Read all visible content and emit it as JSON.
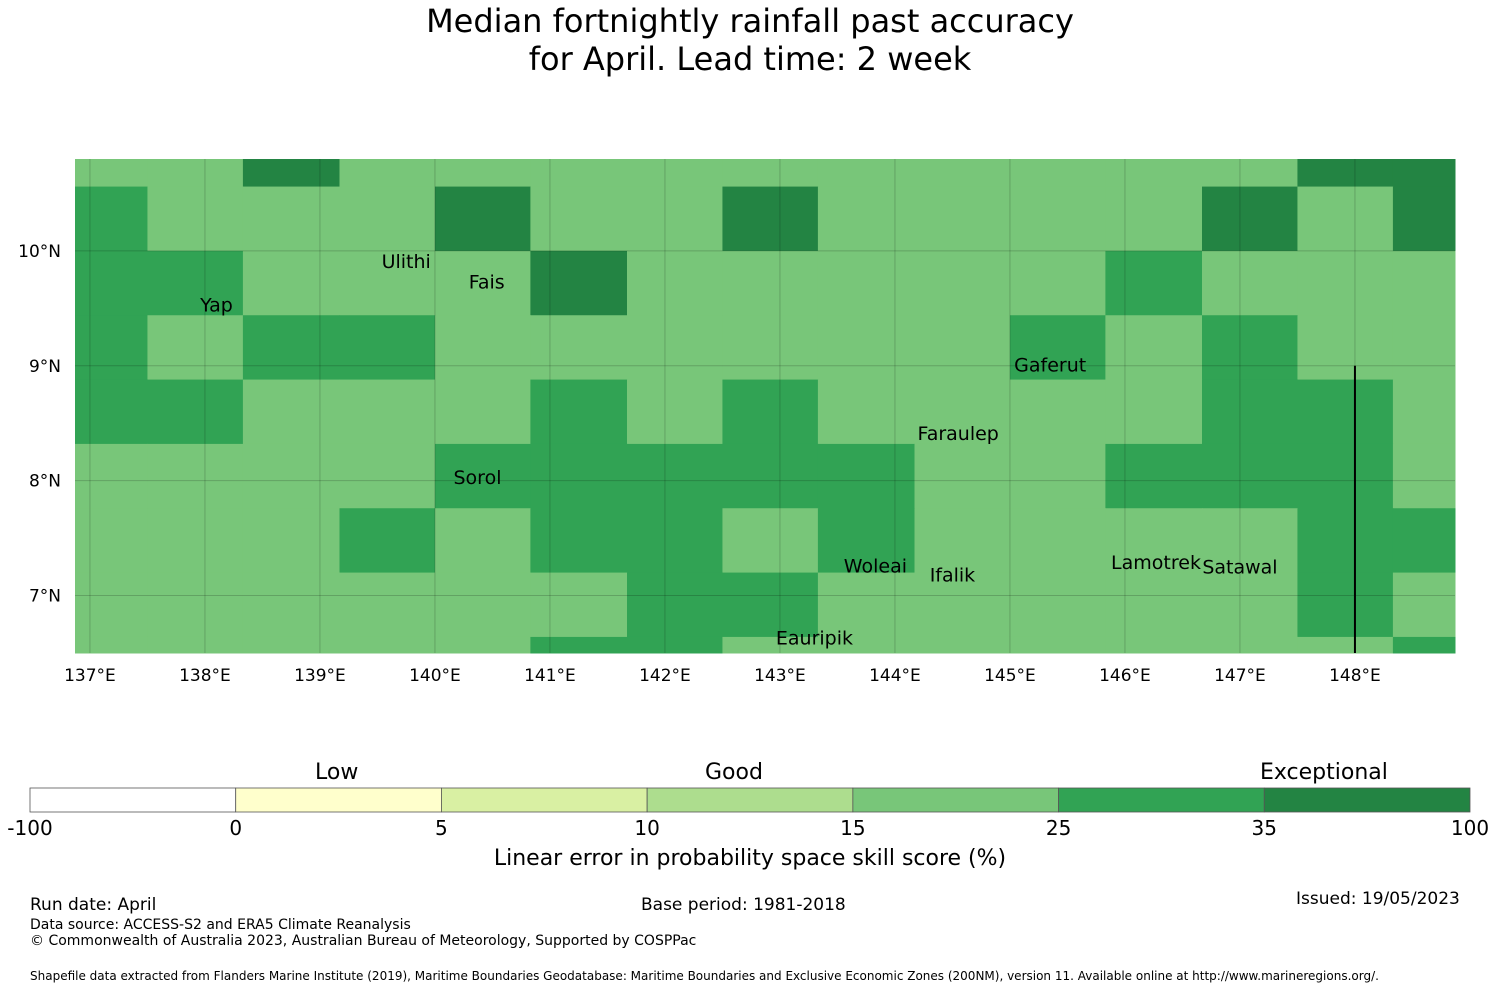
{
  "title": {
    "line1": "Median fortnightly rainfall past accuracy",
    "line2": "for April. Lead time: 2 week"
  },
  "map": {
    "lon_range": [
      136.87,
      148.87
    ],
    "lat_range": [
      6.5,
      10.8
    ],
    "x_ticks": [
      {
        "value": 137,
        "label": "137°E"
      },
      {
        "value": 138,
        "label": "138°E"
      },
      {
        "value": 139,
        "label": "139°E"
      },
      {
        "value": 140,
        "label": "140°E"
      },
      {
        "value": 141,
        "label": "141°E"
      },
      {
        "value": 142,
        "label": "142°E"
      },
      {
        "value": 143,
        "label": "143°E"
      },
      {
        "value": 144,
        "label": "144°E"
      },
      {
        "value": 145,
        "label": "145°E"
      },
      {
        "value": 146,
        "label": "146°E"
      },
      {
        "value": 147,
        "label": "147°E"
      },
      {
        "value": 148,
        "label": "148°E"
      }
    ],
    "y_ticks": [
      {
        "value": 10,
        "label": "10°N"
      },
      {
        "value": 9,
        "label": "9°N"
      },
      {
        "value": 8,
        "label": "8°N"
      },
      {
        "value": 7,
        "label": "7°N"
      }
    ],
    "grid": {
      "lon_edges": [
        136.87,
        137.5,
        138.33,
        139.17,
        140.0,
        140.83,
        141.67,
        142.5,
        143.33,
        144.17,
        145.0,
        145.83,
        146.67,
        147.5,
        148.33,
        148.87
      ],
      "lat_edges": [
        10.8,
        10.56,
        10.0,
        9.44,
        8.88,
        8.32,
        7.76,
        7.2,
        6.64,
        6.5
      ],
      "colors": [
        "#31a354",
        "#78c679",
        "#238443"
      ],
      "rows": [
        [
          1,
          1,
          2,
          1,
          1,
          1,
          1,
          1,
          1,
          1,
          1,
          1,
          1,
          2,
          2
        ],
        [
          0,
          1,
          1,
          1,
          2,
          1,
          1,
          2,
          1,
          1,
          1,
          1,
          2,
          1,
          2
        ],
        [
          0,
          0,
          1,
          1,
          1,
          2,
          1,
          1,
          1,
          1,
          1,
          0,
          1,
          1,
          1
        ],
        [
          0,
          1,
          0,
          0,
          1,
          1,
          1,
          1,
          1,
          1,
          0,
          1,
          0,
          1,
          1
        ],
        [
          0,
          0,
          1,
          1,
          1,
          0,
          1,
          0,
          1,
          1,
          1,
          1,
          0,
          0,
          1
        ],
        [
          1,
          1,
          1,
          1,
          0,
          0,
          0,
          0,
          0,
          1,
          1,
          0,
          0,
          0,
          1
        ],
        [
          1,
          1,
          1,
          0,
          1,
          0,
          0,
          1,
          0,
          1,
          1,
          1,
          1,
          0,
          0
        ],
        [
          1,
          1,
          1,
          1,
          1,
          1,
          0,
          0,
          1,
          1,
          1,
          1,
          1,
          0,
          1
        ],
        [
          1,
          1,
          1,
          1,
          1,
          0,
          0,
          1,
          1,
          1,
          1,
          1,
          1,
          1,
          0
        ]
      ]
    },
    "places": [
      {
        "name": "Ulithi",
        "lon": 139.75,
        "lat": 9.9
      },
      {
        "name": "Fais",
        "lon": 140.45,
        "lat": 9.72
      },
      {
        "name": "Yap",
        "lon": 138.1,
        "lat": 9.52
      },
      {
        "name": "Gaferut",
        "lon": 145.35,
        "lat": 9.0
      },
      {
        "name": "Faraulep",
        "lon": 144.55,
        "lat": 8.4
      },
      {
        "name": "Sorol",
        "lon": 140.37,
        "lat": 8.02
      },
      {
        "name": "Woleai",
        "lon": 143.83,
        "lat": 7.25
      },
      {
        "name": "Lamotrek",
        "lon": 146.27,
        "lat": 7.28
      },
      {
        "name": "Satawal",
        "lon": 147.0,
        "lat": 7.24
      },
      {
        "name": "Ifalik",
        "lon": 144.5,
        "lat": 7.17
      },
      {
        "name": "Eauripik",
        "lon": 143.3,
        "lat": 6.62
      }
    ],
    "boundary_line": {
      "lon": 148.0,
      "lat_top": 9.0,
      "lat_bottom": 6.5
    }
  },
  "legend": {
    "categories": [
      {
        "label": "Low"
      },
      {
        "label": "Good"
      },
      {
        "label": "Exceptional"
      }
    ],
    "bins": [
      {
        "from": "-100",
        "to": "0",
        "color": "#ffffff"
      },
      {
        "from": "0",
        "to": "5",
        "color": "#ffffcc"
      },
      {
        "from": "5",
        "to": "10",
        "color": "#d9f0a3"
      },
      {
        "from": "10",
        "to": "15",
        "color": "#addd8e"
      },
      {
        "from": "15",
        "to": "25",
        "color": "#78c679"
      },
      {
        "from": "25",
        "to": "35",
        "color": "#31a354"
      },
      {
        "from": "35",
        "to": "100",
        "color": "#238443"
      }
    ],
    "tick_labels": [
      "-100",
      "0",
      "5",
      "10",
      "15",
      "25",
      "35",
      "100"
    ],
    "title": "Linear error in probability space skill score (%)"
  },
  "footer": {
    "run_date": "Run date: April",
    "base_period": "Base period: 1981-2018",
    "issued": "Issued: 19/05/2023",
    "data_source": "Data source: ACCESS-S2 and ERA5 Climate Reanalysis",
    "copyright": "© Commonwealth of Australia 2023, Australian Bureau of Meteorology, Supported by COSPPac",
    "shapefile": "Shapefile data extracted from Flanders Marine Institute (2019), Maritime Boundaries Geodatabase: Maritime Boundaries and Exclusive Economic Zones (200NM), version 11. Available online at http://www.marineregions.org/."
  }
}
